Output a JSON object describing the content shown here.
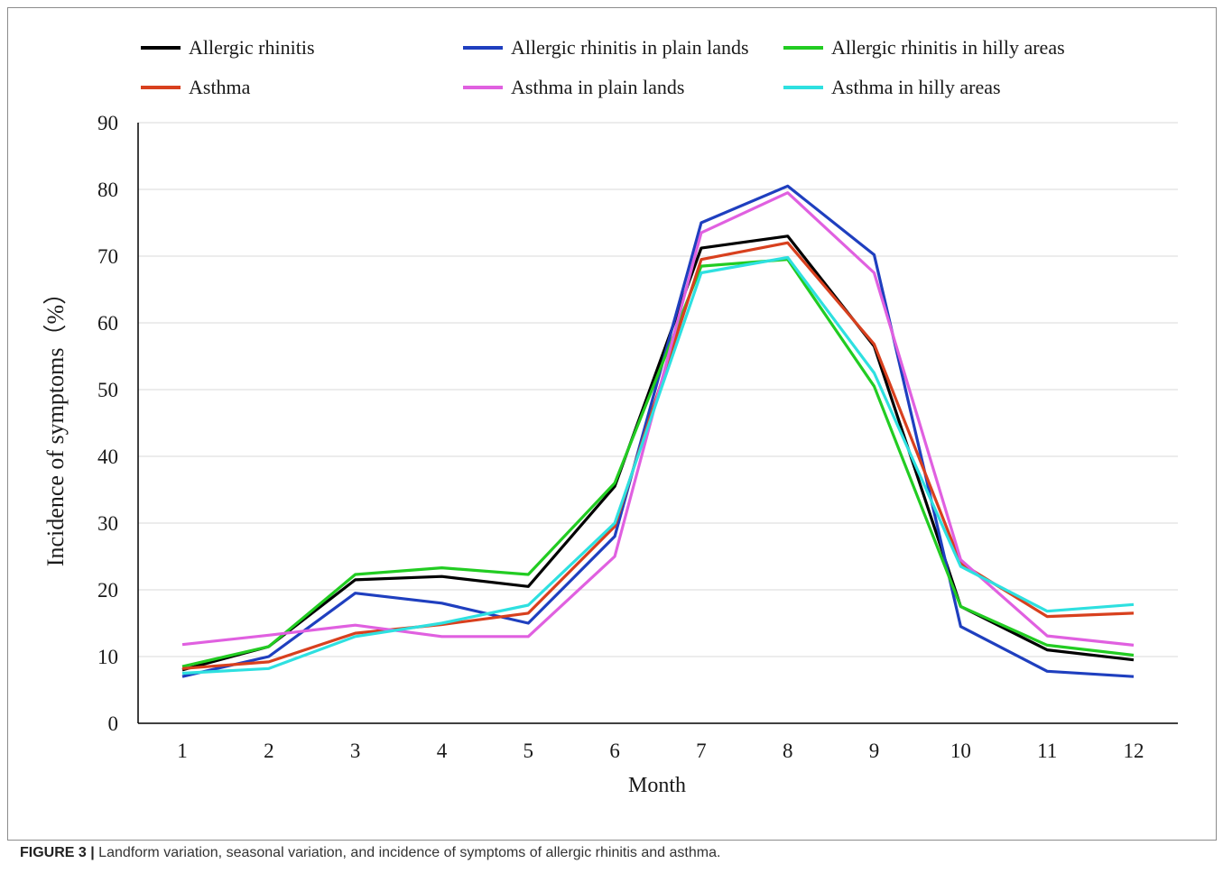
{
  "caption": {
    "label": "FIGURE 3 |",
    "text": " Landform variation, seasonal variation, and incidence of symptoms of allergic rhinitis and asthma."
  },
  "chart_data": {
    "type": "line",
    "title": "",
    "xlabel": "Month",
    "ylabel": "Incidence of symptoms（%）",
    "x": [
      1,
      2,
      3,
      4,
      5,
      6,
      7,
      8,
      9,
      10,
      11,
      12
    ],
    "x_tick_labels": [
      "1",
      "2",
      "3",
      "4",
      "5",
      "6",
      "7",
      "8",
      "9",
      "10",
      "11",
      "12"
    ],
    "ylim": [
      0,
      90
    ],
    "y_ticks": [
      0,
      10,
      20,
      30,
      40,
      50,
      60,
      70,
      80,
      90
    ],
    "y_tick_labels": [
      "0",
      "10",
      "20",
      "30",
      "40",
      "50",
      "60",
      "70",
      "80",
      "90"
    ],
    "grid": true,
    "legend_position": "top",
    "series": [
      {
        "name": "Allergic rhinitis",
        "color": "#000000",
        "values": [
          8,
          11.5,
          21.5,
          22,
          20.5,
          35.5,
          71.2,
          73,
          56.5,
          17.5,
          11,
          9.5
        ]
      },
      {
        "name": "Allergic rhinitis in plain lands",
        "color": "#1f3fbf",
        "values": [
          7,
          10,
          19.5,
          18,
          15,
          28,
          75,
          80.5,
          70.2,
          14.5,
          7.8,
          7
        ]
      },
      {
        "name": "Allergic rhinitis in hilly areas",
        "color": "#22cc22",
        "values": [
          8.5,
          11.5,
          22.3,
          23.3,
          22.3,
          36,
          68.5,
          69.5,
          50.5,
          17.5,
          11.7,
          10.2
        ]
      },
      {
        "name": "Asthma",
        "color": "#d8401e",
        "values": [
          8.2,
          9.2,
          13.5,
          14.8,
          16.5,
          29.5,
          69.5,
          72,
          56.8,
          24,
          16,
          16.5
        ]
      },
      {
        "name": "Asthma in plain lands",
        "color": "#e060e0",
        "values": [
          11.8,
          13.2,
          14.7,
          13,
          13,
          25,
          73.5,
          79.5,
          67.5,
          24.5,
          13.1,
          11.7
        ]
      },
      {
        "name": "Asthma in hilly areas",
        "color": "#2ee0e0",
        "values": [
          7.5,
          8.2,
          13,
          15,
          17.7,
          30,
          67.5,
          69.8,
          52.5,
          23.5,
          16.8,
          17.8
        ]
      }
    ]
  }
}
